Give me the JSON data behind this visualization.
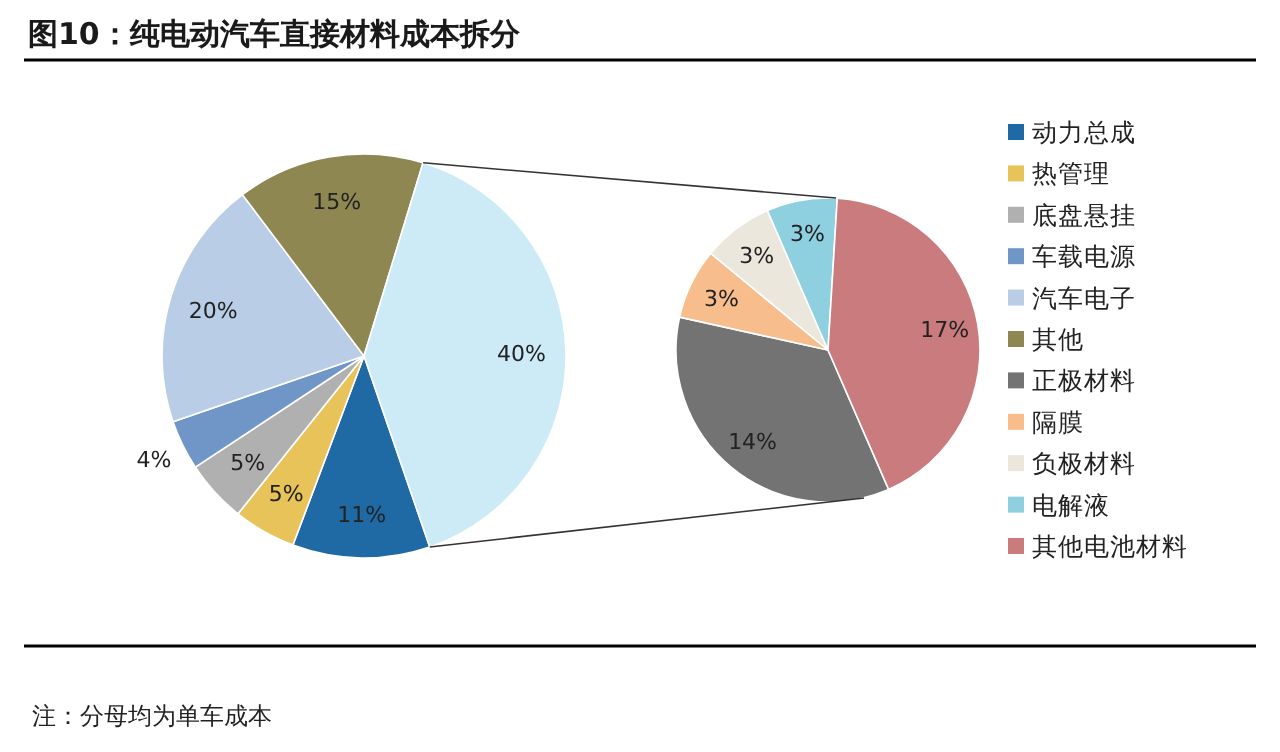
{
  "chart_data": [
    {
      "type": "pie",
      "title": "图10：纯电动汽车直接材料成本拆分",
      "annotations": [
        "注：分母均为单车成本"
      ],
      "legend": "right",
      "categories": [
        "动力总成",
        "热管理",
        "底盘悬挂",
        "车载电源",
        "汽车电子",
        "其他",
        null
      ],
      "values": [
        11,
        5,
        5,
        4,
        20,
        15,
        40
      ],
      "value_labels": [
        "11%",
        "5%",
        "5%",
        "4%",
        "20%",
        "15%",
        "40%"
      ],
      "colors": [
        "#1f6aa5",
        "#e8c35a",
        "#b0b0b0",
        "#7096c8",
        "#b9cde6",
        "#8f8752",
        "#cdeaf7"
      ]
    },
    {
      "type": "pie",
      "legend": "right",
      "categories": [
        "正极材料",
        "隔膜",
        "负极材料",
        "电解液",
        "其他电池材料"
      ],
      "values": [
        14,
        3,
        3,
        3,
        17
      ],
      "value_labels": [
        "14%",
        "3%",
        "3%",
        "3%",
        "17%"
      ],
      "colors": [
        "#737373",
        "#f7bd8c",
        "#ece7dc",
        "#8ecfe0",
        "#c97b7e"
      ]
    }
  ]
}
